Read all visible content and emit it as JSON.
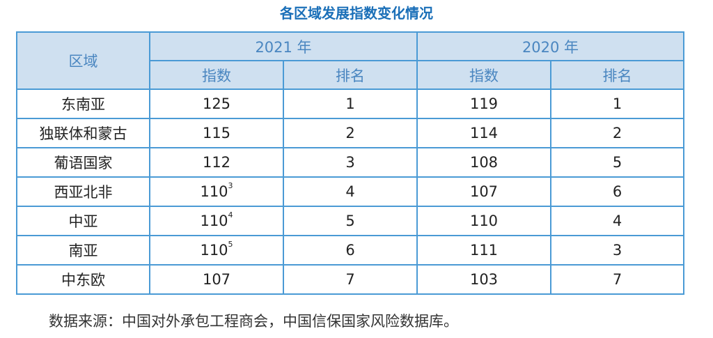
{
  "title": "各区域发展指数变化情况",
  "table": {
    "region_header": "区域",
    "year_2021": "2021 年",
    "year_2020": "2020 年",
    "index_label": "指数",
    "rank_label": "排名",
    "rows": [
      {
        "region": "东南亚",
        "index_2021": "125",
        "sup_2021": "",
        "rank_2021": "1",
        "index_2020": "119",
        "rank_2020": "1"
      },
      {
        "region": "独联体和蒙古",
        "index_2021": "115",
        "sup_2021": "",
        "rank_2021": "2",
        "index_2020": "114",
        "rank_2020": "2"
      },
      {
        "region": "葡语国家",
        "index_2021": "112",
        "sup_2021": "",
        "rank_2021": "3",
        "index_2020": "108",
        "rank_2020": "5"
      },
      {
        "region": "西亚北非",
        "index_2021": "110",
        "sup_2021": "3",
        "rank_2021": "4",
        "index_2020": "107",
        "rank_2020": "6"
      },
      {
        "region": "中亚",
        "index_2021": "110",
        "sup_2021": "4",
        "rank_2021": "5",
        "index_2020": "110",
        "rank_2020": "4"
      },
      {
        "region": "南亚",
        "index_2021": "110",
        "sup_2021": "5",
        "rank_2021": "6",
        "index_2020": "111",
        "rank_2020": "3"
      },
      {
        "region": "中东欧",
        "index_2021": "107",
        "sup_2021": "",
        "rank_2021": "7",
        "index_2020": "103",
        "rank_2020": "7"
      }
    ]
  },
  "footnote": "数据来源：中国对外承包工程商会，中国信保国家风险数据库。",
  "colors": {
    "title": "#1a6fb8",
    "header_bg": "#cfe0f0",
    "header_text": "#4a86c0",
    "border": "#4a9ad5"
  }
}
